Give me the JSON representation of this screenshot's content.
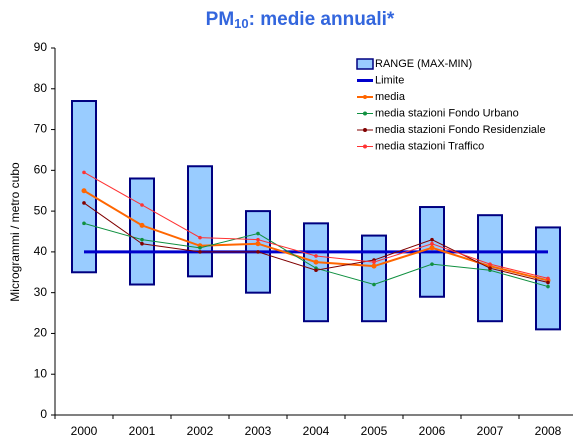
{
  "chart_data": {
    "type": "range_line",
    "title_parts": [
      "PM",
      "10",
      ": medie annuali*"
    ],
    "y_label": "Microgrammi / metro cubo",
    "categories": [
      "2000",
      "2001",
      "2002",
      "2003",
      "2004",
      "2005",
      "2006",
      "2007",
      "2008"
    ],
    "ylim": [
      0,
      90
    ],
    "yticks": [
      0,
      10,
      20,
      30,
      40,
      50,
      60,
      70,
      80,
      90
    ],
    "range": {
      "name": "RANGE (MAX-MIN)",
      "color": "#99ccff",
      "edge": "#000080",
      "low": [
        35,
        32,
        34,
        30,
        23,
        23,
        29,
        23,
        21
      ],
      "high": [
        77,
        58,
        61,
        50,
        47,
        44,
        51,
        49,
        46
      ]
    },
    "series": [
      {
        "name": "Limite",
        "color": "#0000cc",
        "values": [
          40,
          40,
          40,
          40,
          40,
          40,
          40,
          40,
          40
        ]
      },
      {
        "name": "media",
        "color": "#ff6600",
        "values": [
          55,
          46.5,
          41.5,
          42,
          37.5,
          36.5,
          41,
          36.5,
          33
        ]
      },
      {
        "name": "media stazioni Fondo Urbano",
        "color": "#109040",
        "values": [
          47,
          43,
          41,
          44.5,
          36,
          32,
          37,
          35.5,
          31.5
        ]
      },
      {
        "name": "media stazioni Fondo Residenziale",
        "color": "#800000",
        "values": [
          52,
          42,
          40,
          40,
          35.5,
          38,
          43,
          36,
          32.5
        ]
      },
      {
        "name": "media stazioni Traffico",
        "color": "#ff3333",
        "values": [
          59.5,
          51.5,
          43.5,
          43,
          39,
          37.5,
          42,
          37,
          33.5
        ]
      }
    ]
  }
}
